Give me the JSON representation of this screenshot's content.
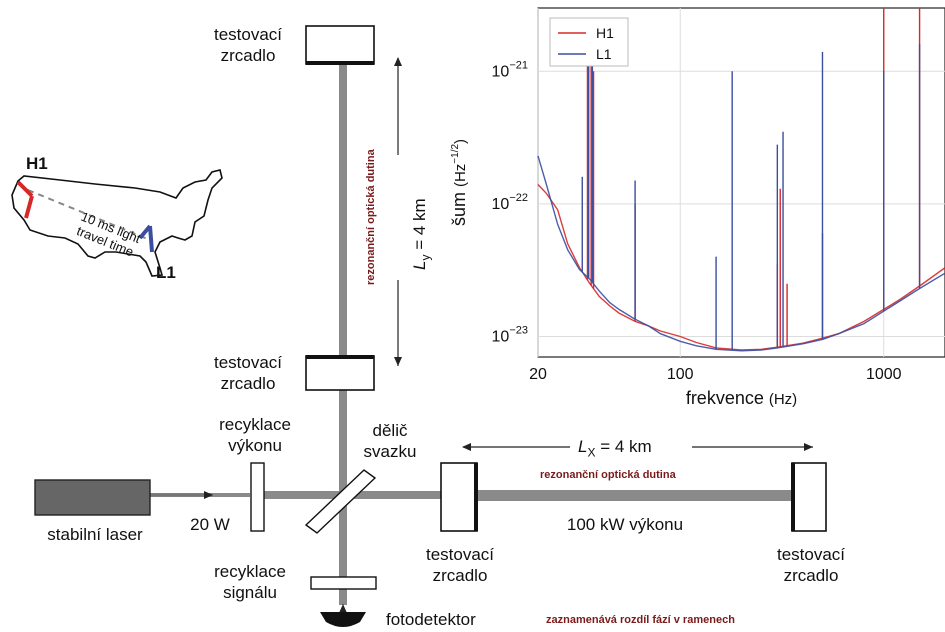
{
  "map": {
    "h1_label": "H1",
    "l1_label": "L1",
    "travel_line1": "10 ms light",
    "travel_line2": "travel time"
  },
  "mirrors": {
    "top_line1": "testovací",
    "top_line2": "zrcadlo",
    "mid_line1": "testovací",
    "mid_line2": "zrcadlo",
    "bottom_left_line1": "testovací",
    "bottom_left_line2": "zrcadlo",
    "bottom_right_line1": "testovací",
    "bottom_right_line2": "zrcadlo"
  },
  "labels": {
    "power_recycling_line1": "recyklace",
    "power_recycling_line2": "výkonu",
    "beam_splitter_line1": "dělič",
    "beam_splitter_line2": "svazku",
    "laser": "stabilní laser",
    "laser_power": "20 W",
    "signal_recycling_line1": "recyklace",
    "signal_recycling_line2": "signálu",
    "photodetector": "fotodetektor",
    "photodetector_note": "zaznamenává rozdíl fází v ramenech",
    "cavity_vertical": "rezonanční optická dutina",
    "cavity_horizontal": "rezonanční optická dutina",
    "arm_power": "100 kW výkonu",
    "ly_symbol": "L",
    "ly_sub": "y",
    "ly_value": " = 4 km",
    "lx_symbol": "L",
    "lx_sub": "X",
    "lx_value": " = 4 km"
  },
  "chart_data": {
    "type": "line",
    "xlabel": "frekvence",
    "xlabel_unit": "(Hz)",
    "ylabel": "šum",
    "ylabel_unit": "(Hz",
    "ylabel_exp": "−1/2",
    "ylabel_close": ")",
    "x_scale": "log",
    "y_scale": "log",
    "xlim": [
      20,
      2000
    ],
    "ylim": [
      7e-24,
      3e-21
    ],
    "x_ticks": [
      20,
      100,
      1000
    ],
    "x_tick_labels": [
      "20",
      "100",
      "1000"
    ],
    "y_ticks": [
      1e-23,
      1e-22,
      1e-21
    ],
    "y_tick_base": "10",
    "y_tick_exps": [
      "−23",
      "−22",
      "−21"
    ],
    "grid": true,
    "legend_position": "top-left",
    "series": [
      {
        "name": "H1",
        "color": "#d62828",
        "x": [
          20,
          22,
          25,
          28,
          32,
          36,
          40,
          45,
          50,
          60,
          70,
          80,
          100,
          120,
          150,
          200,
          250,
          300,
          400,
          500,
          600,
          800,
          1000,
          1200,
          1500,
          2000
        ],
        "y": [
          1.4e-22,
          1.2e-22,
          9e-23,
          5e-23,
          3.3e-23,
          2.5e-23,
          2e-23,
          1.7e-23,
          1.5e-23,
          1.3e-23,
          1.2e-23,
          1.1e-23,
          1e-23,
          9e-24,
          8.2e-24,
          7.9e-24,
          8e-24,
          8.3e-24,
          8.9e-24,
          9.7e-24,
          1.05e-23,
          1.3e-23,
          1.6e-23,
          1.9e-23,
          2.4e-23,
          3.3e-23
        ],
        "peaks": [
          [
            35,
            2.1e-21
          ],
          [
            36.5,
            2.5e-21
          ],
          [
            37.5,
            1e-21
          ],
          [
            60,
            1e-22
          ],
          [
            300,
            3.5e-23
          ],
          [
            310,
            1.3e-22
          ],
          [
            335,
            2.5e-23
          ],
          [
            500,
            6e-23
          ],
          [
            1000,
            3e-21
          ],
          [
            1500,
            3e-21
          ]
        ]
      },
      {
        "name": "L1",
        "color": "#3b4ea0",
        "x": [
          20,
          22,
          25,
          28,
          32,
          36,
          40,
          45,
          50,
          60,
          70,
          80,
          100,
          120,
          150,
          200,
          250,
          300,
          400,
          500,
          600,
          800,
          1000,
          1200,
          1500,
          2000
        ],
        "y": [
          2.3e-22,
          1.4e-22,
          7e-23,
          4.5e-23,
          3.2e-23,
          2.7e-23,
          2.2e-23,
          1.8e-23,
          1.6e-23,
          1.35e-23,
          1.2e-23,
          1.05e-23,
          9.2e-24,
          8.5e-24,
          8e-24,
          7.8e-24,
          7.9e-24,
          8.2e-24,
          8.8e-24,
          9.5e-24,
          1.05e-23,
          1.25e-23,
          1.55e-23,
          1.85e-23,
          2.3e-23,
          3e-23
        ],
        "peaks": [
          [
            33,
            1.6e-22
          ],
          [
            35.5,
            2.2e-21
          ],
          [
            37,
            1.9e-21
          ],
          [
            60,
            1.5e-22
          ],
          [
            150,
            4e-23
          ],
          [
            180,
            1e-21
          ],
          [
            300,
            2.8e-22
          ],
          [
            320,
            3.5e-22
          ],
          [
            500,
            1.4e-21
          ],
          [
            1000,
            1e-21
          ],
          [
            1500,
            1.6e-21
          ]
        ]
      }
    ]
  }
}
